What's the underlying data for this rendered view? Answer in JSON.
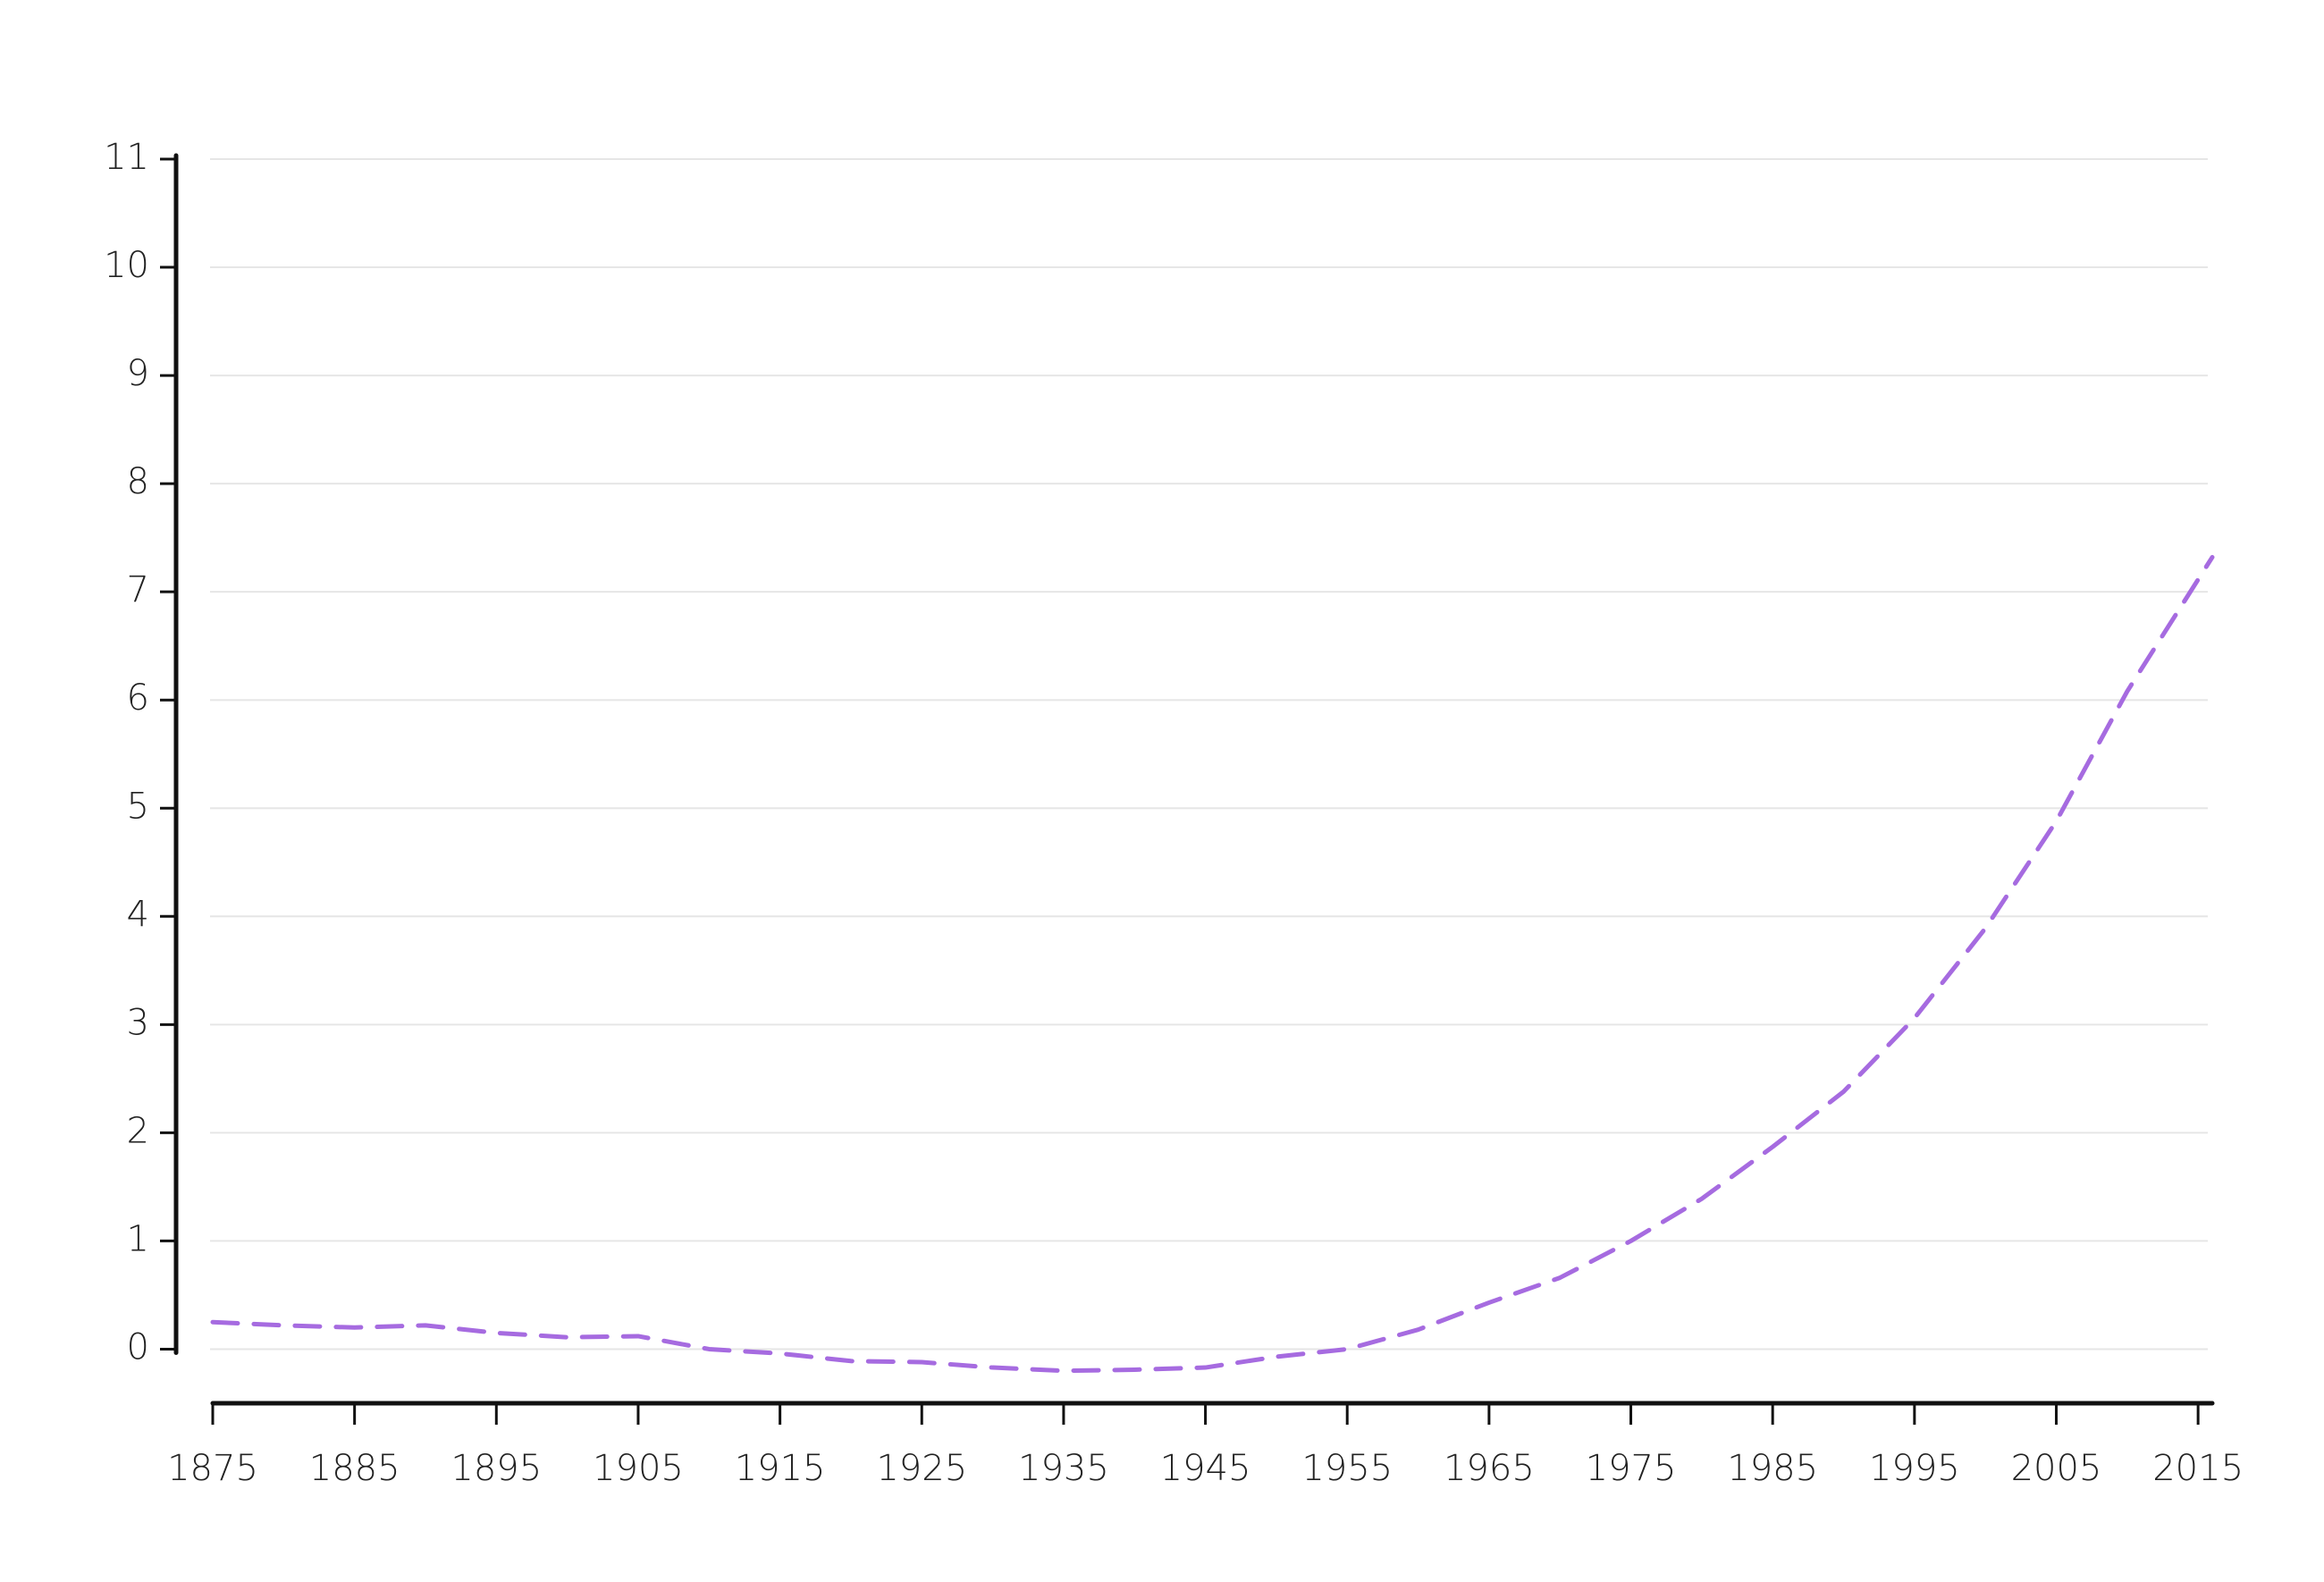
{
  "chart_data": {
    "type": "line",
    "x": [
      1875,
      1880,
      1885,
      1890,
      1895,
      1900,
      1905,
      1910,
      1915,
      1920,
      1925,
      1930,
      1935,
      1940,
      1945,
      1950,
      1955,
      1960,
      1965,
      1970,
      1975,
      1980,
      1985,
      1990,
      1995,
      2000,
      2005,
      2010,
      2016
    ],
    "series": [
      {
        "color": "#a66be0",
        "dash": true,
        "values": [
          0.25,
          0.22,
          0.2,
          0.22,
          0.15,
          0.11,
          0.12,
          0.0,
          -0.04,
          -0.11,
          -0.12,
          -0.17,
          -0.2,
          -0.19,
          -0.17,
          -0.07,
          0.0,
          0.18,
          0.43,
          0.66,
          1.0,
          1.39,
          1.87,
          2.38,
          3.06,
          3.89,
          4.88,
          6.08,
          7.32
        ]
      }
    ],
    "xlim": [
      1875,
      2016
    ],
    "xticks": [
      1875,
      1885,
      1895,
      1905,
      1915,
      1925,
      1935,
      1945,
      1955,
      1965,
      1975,
      1985,
      1995,
      2005,
      2015
    ],
    "ylim": [
      -0.5,
      11
    ],
    "yticks": [
      0,
      1,
      2,
      3,
      4,
      5,
      6,
      7,
      8,
      9,
      10,
      11
    ],
    "grid": true
  }
}
